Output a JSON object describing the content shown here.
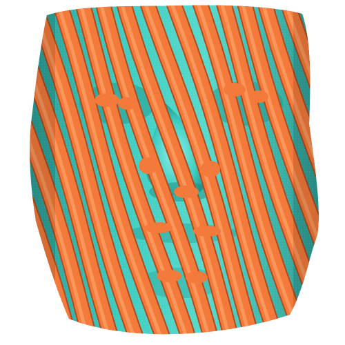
{
  "scene": {
    "subject": "striped-face-surface-rendering",
    "colors": {
      "background": "#ffffff",
      "stripe": "#f47a3c",
      "stripe_shadow": "#b24a1c",
      "stripe_highlight": "#ffa468",
      "surface": "#3ecdc1",
      "surface_shadow": "#1f8d86",
      "surface_highlight": "#8ff1e6"
    }
  }
}
